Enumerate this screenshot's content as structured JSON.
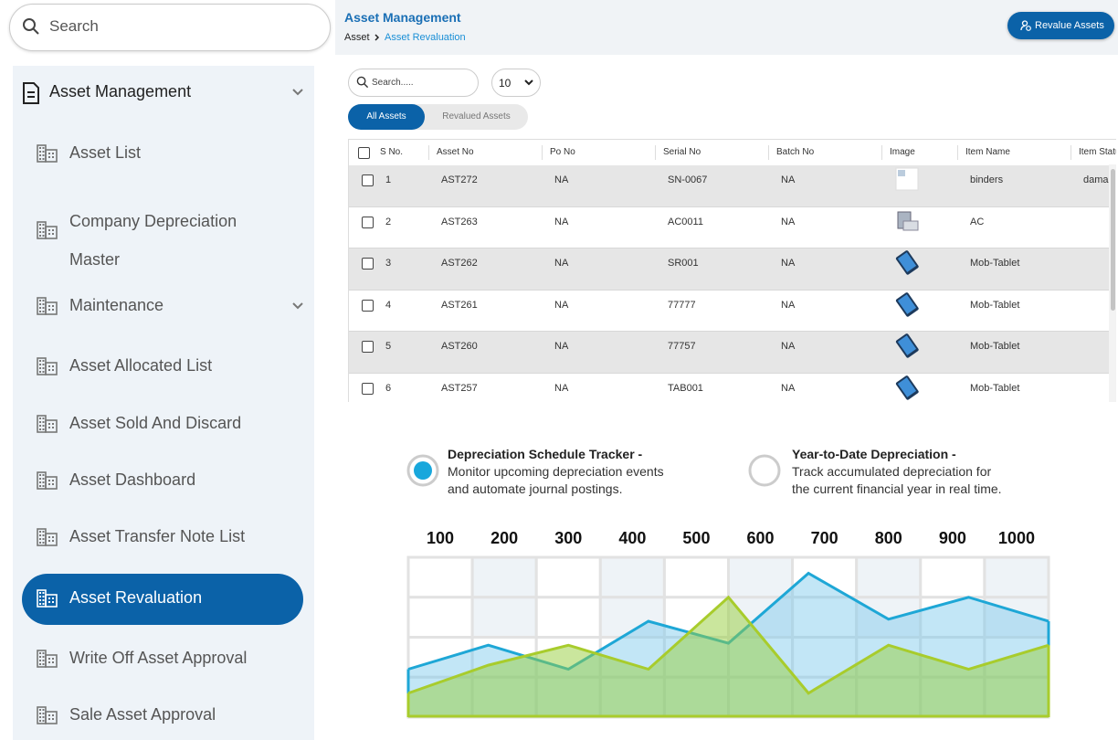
{
  "sidebar": {
    "search_placeholder": "Search",
    "menu_title": "Asset Management",
    "items": [
      "Asset List",
      "Company Depreciation Master",
      "Maintenance",
      "Asset Allocated List",
      "Asset Sold And Discard",
      "Asset Dashboard",
      "Asset Transfer Note List",
      "Asset Revaluation",
      "Write Off Asset Approval",
      "Sale Asset Approval"
    ],
    "active_item": 7,
    "expandable_items": [
      2
    ]
  },
  "header": {
    "title": "Asset Management",
    "breadcrumb": [
      "Asset",
      "Asset Revaluation"
    ],
    "button": "Revalue Assets"
  },
  "toolbar": {
    "search_placeholder": "Search.....",
    "page_size": "10",
    "tabs": [
      "All Assets",
      "Revalued Assets"
    ],
    "active_tab": 0
  },
  "table": {
    "columns": [
      "S No.",
      "Asset No",
      "Po No",
      "Serial No",
      "Batch No",
      "Image",
      "Item Name",
      "Item Status"
    ],
    "rows": [
      [
        1,
        "AST272",
        "NA",
        "SN-0067",
        "NA",
        null,
        "binders",
        "damaged"
      ],
      [
        2,
        "AST263",
        "NA",
        "AC0011",
        "NA",
        null,
        "AC",
        null
      ],
      [
        3,
        "AST262",
        "NA",
        "SR001",
        "NA",
        null,
        "Mob-Tablet",
        null
      ],
      [
        4,
        "AST261",
        "NA",
        "77777",
        "NA",
        null,
        "Mob-Tablet",
        null
      ],
      [
        5,
        "AST260",
        "NA",
        "77757",
        "NA",
        null,
        "Mob-Tablet",
        null
      ],
      [
        6,
        "AST257",
        "NA",
        "TAB001",
        "NA",
        null,
        "Mob-Tablet",
        null
      ]
    ]
  },
  "features": [
    {
      "title": "Depreciation Schedule Tracker -",
      "lines": [
        "Monitor upcoming depreciation events",
        "and automate journal postings."
      ],
      "selected": true
    },
    {
      "title": "Year-to-Date Depreciation -",
      "lines": [
        "Track accumulated depreciation for",
        "the current financial year in real time."
      ],
      "selected": false
    }
  ],
  "chart": {
    "type": "area",
    "categories": [
      "100",
      "200",
      "300",
      "400",
      "500",
      "600",
      "700",
      "800",
      "900",
      "1000"
    ],
    "x": [
      0,
      1.25,
      2.5,
      3.75,
      5,
      6.25,
      7.5,
      8.75,
      10
    ],
    "xlim": [
      0,
      10
    ],
    "ylim": [
      0,
      4
    ],
    "series": [
      {
        "color": "#1ea7d6",
        "values": [
          1.2,
          1.8,
          1.2,
          2.4,
          1.85,
          3.6,
          2.45,
          3,
          2.4
        ]
      },
      {
        "color": "#a8cc2c",
        "values": [
          0.6,
          1.3,
          1.8,
          1.2,
          3,
          0.6,
          1.8,
          1.2,
          1.8
        ]
      }
    ]
  }
}
